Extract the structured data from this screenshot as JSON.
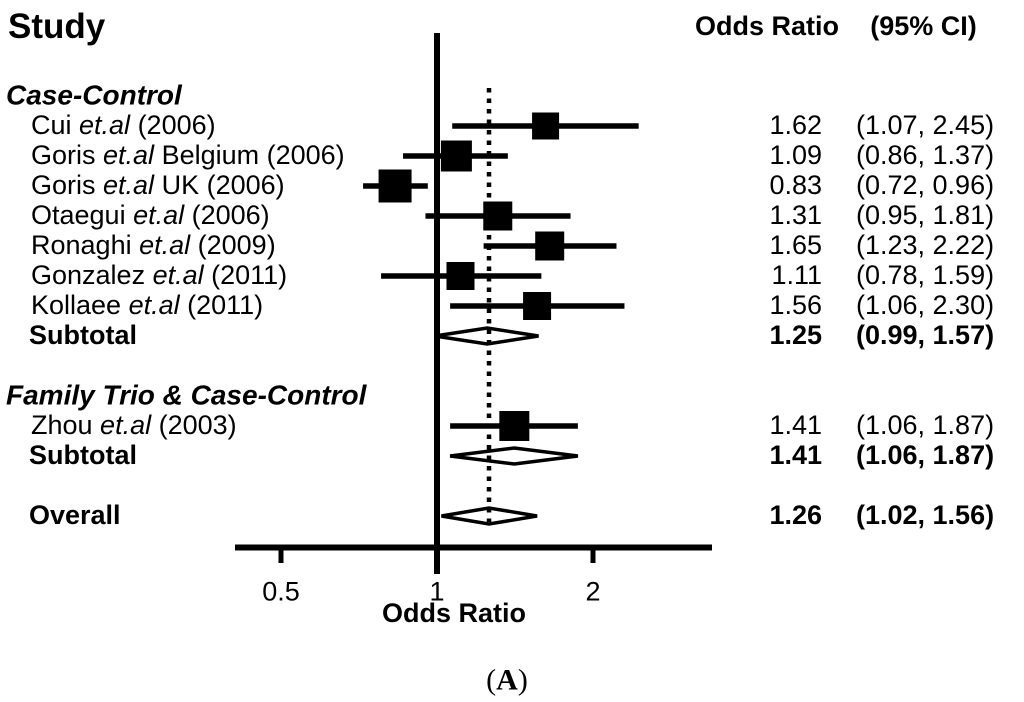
{
  "figure": {
    "title": "Study",
    "col_or_header": "Odds Ratio",
    "col_ci_header": "(95% CI)",
    "caption_open": "(",
    "caption_letter": "A",
    "caption_close": ")"
  },
  "axis": {
    "label": "Odds Ratio",
    "ticks": [
      "0.5",
      "1",
      "2"
    ]
  },
  "colors": {
    "ink": "#000000",
    "bg": "#ffffff"
  },
  "chart_data": {
    "type": "forest",
    "x_scale": "log2",
    "xlabel": "Odds Ratio",
    "x_ticks": [
      0.5,
      1,
      2
    ],
    "xlim": [
      0.41,
      3.4
    ],
    "ref_line": 1.0,
    "pooled_dotted_line": 1.26,
    "grid": false,
    "legend": false,
    "groups": [
      {
        "label": "Case-Control",
        "studies": [
          {
            "name_pre": "Cui ",
            "name_it": "et.al",
            "name_post": " (2006)",
            "or": 1.62,
            "lo": 1.07,
            "hi": 2.45,
            "or_s": "1.62",
            "ci_s": "(1.07, 2.45)",
            "marker": 27
          },
          {
            "name_pre": "Goris ",
            "name_it": "et.al",
            "name_post": " Belgium (2006)",
            "or": 1.09,
            "lo": 0.86,
            "hi": 1.37,
            "or_s": "1.09",
            "ci_s": "(0.86, 1.37)",
            "marker": 31
          },
          {
            "name_pre": "Goris ",
            "name_it": "et.al",
            "name_post": " UK (2006)",
            "or": 0.83,
            "lo": 0.72,
            "hi": 0.96,
            "or_s": "0.83",
            "ci_s": "(0.72, 0.96)",
            "marker": 33
          },
          {
            "name_pre": "Otaegui ",
            "name_it": "et.al",
            "name_post": " (2006)",
            "or": 1.31,
            "lo": 0.95,
            "hi": 1.81,
            "or_s": "1.31",
            "ci_s": "(0.95, 1.81)",
            "marker": 29
          },
          {
            "name_pre": "Ronaghi ",
            "name_it": "et.al",
            "name_post": " (2009)",
            "or": 1.65,
            "lo": 1.23,
            "hi": 2.22,
            "or_s": "1.65",
            "ci_s": "(1.23, 2.22)",
            "marker": 29
          },
          {
            "name_pre": "Gonzalez ",
            "name_it": "et.al",
            "name_post": " (2011)",
            "or": 1.11,
            "lo": 0.78,
            "hi": 1.59,
            "or_s": "1.11",
            "ci_s": "(0.78, 1.59)",
            "marker": 28
          },
          {
            "name_pre": "Kollaee ",
            "name_it": "et.al",
            "name_post": " (2011)",
            "or": 1.56,
            "lo": 1.06,
            "hi": 2.3,
            "or_s": "1.56",
            "ci_s": "(1.06, 2.30)",
            "marker": 28
          }
        ],
        "subtotal": {
          "label": "Subtotal",
          "or": 1.25,
          "lo": 0.99,
          "hi": 1.57,
          "or_s": "1.25",
          "ci_s": "(0.99, 1.57)"
        }
      },
      {
        "label": "Family Trio & Case-Control",
        "studies": [
          {
            "name_pre": "Zhou ",
            "name_it": "et.al",
            "name_post": " (2003)",
            "or": 1.41,
            "lo": 1.06,
            "hi": 1.87,
            "or_s": "1.41",
            "ci_s": "(1.06, 1.87)",
            "marker": 30
          }
        ],
        "subtotal": {
          "label": "Subtotal",
          "or": 1.41,
          "lo": 1.06,
          "hi": 1.87,
          "or_s": "1.41",
          "ci_s": "(1.06, 1.87)"
        }
      }
    ],
    "overall": {
      "label": "Overall",
      "or": 1.26,
      "lo": 1.02,
      "hi": 1.56,
      "or_s": "1.26",
      "ci_s": "(1.02, 1.56)"
    }
  }
}
